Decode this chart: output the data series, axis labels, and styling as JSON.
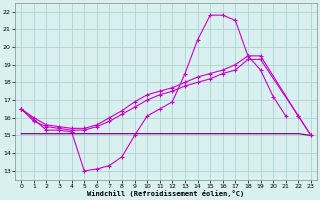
{
  "bg_color": "#d8f0f0",
  "line_color": "#cc00cc",
  "line_color2": "#880088",
  "grid_color": "#aacccc",
  "xlabel": "Windchill (Refroidissement éolien,°C)",
  "ylim": [
    12.5,
    22.5
  ],
  "xlim": [
    -0.5,
    23.5
  ],
  "yticks": [
    13,
    14,
    15,
    16,
    17,
    18,
    19,
    20,
    21,
    22
  ],
  "xticks": [
    0,
    1,
    2,
    3,
    4,
    5,
    6,
    7,
    8,
    9,
    10,
    11,
    12,
    13,
    14,
    15,
    16,
    17,
    18,
    19,
    20,
    21,
    22,
    23
  ],
  "line1_x": [
    0,
    1,
    2,
    3,
    4,
    5,
    6,
    7,
    8,
    9,
    10,
    11,
    12,
    13,
    14,
    15,
    16,
    17,
    18,
    19,
    20,
    21
  ],
  "line1_y": [
    16.5,
    15.9,
    15.3,
    15.3,
    15.2,
    13.0,
    13.1,
    13.3,
    13.8,
    15.0,
    16.1,
    16.5,
    16.9,
    18.5,
    20.4,
    21.8,
    21.8,
    21.5,
    19.5,
    18.7,
    17.2,
    16.1
  ],
  "line2_x": [
    0,
    5,
    9,
    10,
    11,
    12,
    13,
    14,
    15,
    16,
    17,
    18,
    19,
    20,
    21,
    22,
    23
  ],
  "line2_y": [
    15.1,
    15.1,
    15.1,
    15.1,
    15.1,
    15.1,
    15.1,
    15.1,
    15.1,
    15.1,
    15.1,
    15.1,
    15.1,
    15.1,
    15.1,
    15.1,
    15.0
  ],
  "line3_x": [
    0,
    1,
    2,
    3,
    4,
    5,
    6,
    7,
    8,
    9,
    10,
    11,
    12,
    13,
    14,
    15,
    16,
    17,
    18,
    19,
    22,
    23
  ],
  "line3_y": [
    16.5,
    16.0,
    15.6,
    15.5,
    15.4,
    15.4,
    15.6,
    16.0,
    16.4,
    16.9,
    17.3,
    17.5,
    17.7,
    18.0,
    18.3,
    18.5,
    18.7,
    19.0,
    19.5,
    19.5,
    16.1,
    15.0
  ],
  "line4_x": [
    0,
    1,
    2,
    3,
    4,
    5,
    6,
    7,
    8,
    9,
    10,
    11,
    12,
    13,
    14,
    15,
    16,
    17,
    18,
    19,
    22,
    23
  ],
  "line4_y": [
    16.5,
    15.8,
    15.5,
    15.4,
    15.3,
    15.3,
    15.5,
    15.8,
    16.2,
    16.6,
    17.0,
    17.3,
    17.5,
    17.8,
    18.0,
    18.2,
    18.5,
    18.7,
    19.3,
    19.3,
    16.1,
    15.0
  ]
}
